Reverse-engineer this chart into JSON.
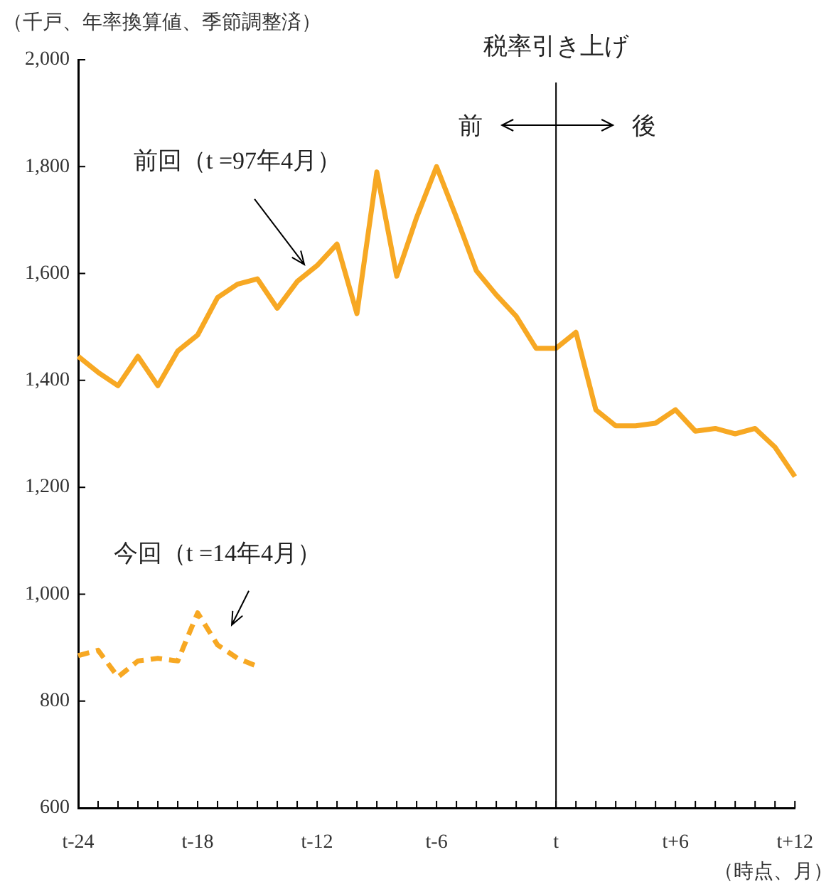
{
  "chart_data": {
    "type": "line",
    "ylabel": "（千戸、年率換算値、季節調整済）",
    "xlabel": "（時点、月）",
    "categories": [
      "t-24",
      null,
      null,
      null,
      null,
      null,
      "t-18",
      null,
      null,
      null,
      null,
      null,
      "t-12",
      null,
      null,
      null,
      null,
      null,
      "t-6",
      null,
      null,
      null,
      null,
      null,
      "t",
      null,
      null,
      null,
      null,
      null,
      "t+6",
      null,
      null,
      null,
      null,
      null,
      "t+12"
    ],
    "series": [
      {
        "name": "前回（t =97年4月）",
        "color": "#f7a823",
        "line_style": "solid",
        "values": [
          1445,
          1415,
          1390,
          1445,
          1390,
          1455,
          1485,
          1555,
          1580,
          1590,
          1535,
          1585,
          1615,
          1655,
          1525,
          1790,
          1595,
          1705,
          1800,
          1705,
          1605,
          1560,
          1520,
          1460,
          1460,
          1490,
          1345,
          1315,
          1315,
          1320,
          1345,
          1305,
          1310,
          1300,
          1310,
          1275,
          1220
        ]
      },
      {
        "name": "今回（t =14年4月）",
        "color": "#f7a823",
        "line_style": "dashed",
        "values": [
          885,
          895,
          845,
          875,
          880,
          875,
          965,
          905,
          880,
          865,
          null,
          null,
          null,
          null,
          null,
          null,
          null,
          null,
          null,
          null,
          null,
          null,
          null,
          null,
          null,
          null,
          null,
          null,
          null,
          null,
          null,
          null,
          null,
          null,
          null,
          null,
          null
        ]
      }
    ],
    "ylim": [
      600,
      2000
    ],
    "yticks": [
      {
        "value": 600,
        "label": "600"
      },
      {
        "value": 800,
        "label": "800"
      },
      {
        "value": 1000,
        "label": "1,000"
      },
      {
        "value": 1200,
        "label": "1,200"
      },
      {
        "value": 1400,
        "label": "1,400"
      },
      {
        "value": 1600,
        "label": "1,600"
      },
      {
        "value": 1800,
        "label": "1,800"
      },
      {
        "value": 2000,
        "label": "2,000"
      }
    ],
    "ref_lines": [
      {
        "axis": "x",
        "value": "t",
        "label": "税率引き上げ",
        "color": "#000000"
      }
    ],
    "annotations": [
      "前",
      "後"
    ],
    "grid": false,
    "legend": false,
    "marker": "none"
  }
}
